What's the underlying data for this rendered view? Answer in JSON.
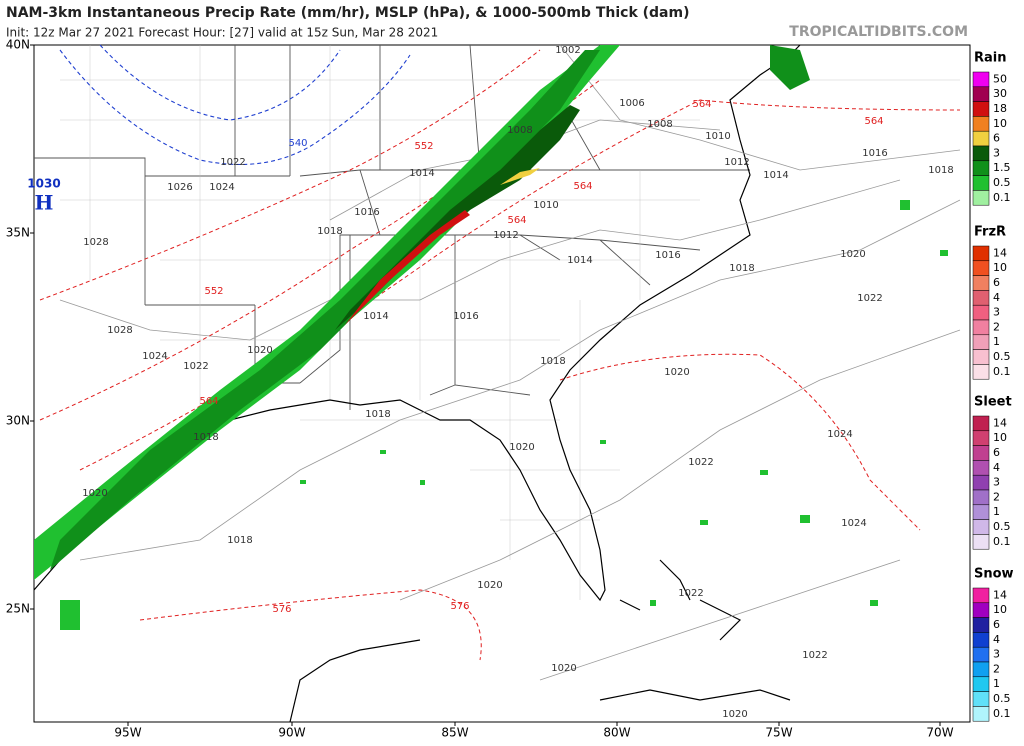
{
  "header": {
    "title": "NAM-3km Instantaneous Precip Rate (mm/hr), MSLP (hPa), & 1000-500mb Thick (dam)",
    "subtitle": "Init: 12z Mar 27 2021   Forecast Hour: [27]   valid at 15z Sun, Mar 28 2021",
    "watermark": "TROPICALTIDBITS.COM"
  },
  "axes": {
    "lat_labels": [
      "40N",
      "35N",
      "30N",
      "25N"
    ],
    "lon_labels": [
      "95W",
      "90W",
      "85W",
      "80W",
      "75W",
      "70W"
    ]
  },
  "legends": [
    {
      "title": "Rain",
      "labels": [
        "50",
        "30",
        "18",
        "10",
        "6",
        "3",
        "1.5",
        "0.5",
        "0.1"
      ],
      "colors": [
        "#f000f0",
        "#a00050",
        "#d01010",
        "#f08020",
        "#f0d040",
        "#0a5a0a",
        "#10901a",
        "#20c030",
        "#a0f0a0"
      ]
    },
    {
      "title": "FrzR",
      "labels": [
        "14",
        "10",
        "6",
        "4",
        "3",
        "2",
        "1",
        "0.5",
        "0.1"
      ],
      "colors": [
        "#e03000",
        "#f05020",
        "#f08060",
        "#e06070",
        "#f06080",
        "#f080a0",
        "#f0a0b8",
        "#f8c0d0",
        "#fbe0e8"
      ]
    },
    {
      "title": "Sleet",
      "labels": [
        "14",
        "10",
        "6",
        "4",
        "3",
        "2",
        "1",
        "0.5",
        "0.1"
      ],
      "colors": [
        "#c02050",
        "#d04070",
        "#c04090",
        "#b050b0",
        "#9040b0",
        "#a070c8",
        "#b090d8",
        "#d0b8e8",
        "#ece0f4"
      ]
    },
    {
      "title": "Snow",
      "labels": [
        "14",
        "10",
        "6",
        "4",
        "3",
        "2",
        "1",
        "0.5",
        "0.1"
      ],
      "colors": [
        "#f020a0",
        "#a000c0",
        "#2020a0",
        "#1040d0",
        "#2070f0",
        "#10a0f0",
        "#20c8f0",
        "#60e0f8",
        "#b0f4fc"
      ]
    }
  ],
  "map": {
    "high_center": {
      "value": "1030",
      "label": "H"
    },
    "pressure_labels": [
      "1002",
      "1006",
      "1008",
      "1010",
      "1012",
      "1014",
      "1016",
      "1018",
      "1014",
      "1016",
      "1018",
      "1010",
      "1012",
      "1014",
      "1016",
      "1018",
      "1020",
      "1022",
      "1026",
      "1024",
      "1022",
      "1028",
      "1028",
      "1024",
      "1022",
      "1020",
      "1014",
      "1016",
      "1018",
      "1020",
      "1024",
      "1018",
      "1020",
      "1022",
      "1024",
      "1020",
      "1018",
      "1020",
      "1022",
      "1022",
      "1020",
      "1020",
      "1018",
      "1008"
    ],
    "thickness_labels": [
      "564",
      "564",
      "552",
      "564",
      "564",
      "552",
      "564",
      "576",
      "576"
    ],
    "low_thickness_labels": [
      "540"
    ]
  }
}
